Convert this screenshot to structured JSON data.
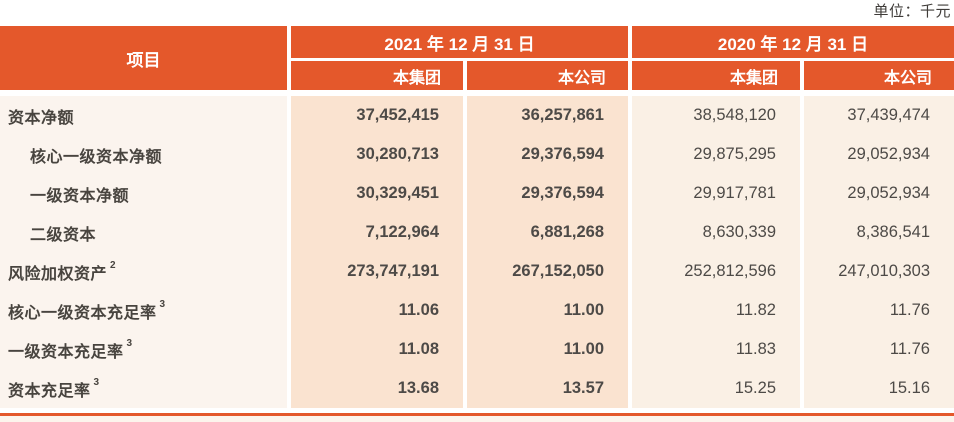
{
  "unit_label": "单位：千元",
  "colors": {
    "accent_orange": "#e4582b",
    "col_2021_bg": "#fae3d0",
    "col_2020_bg": "#faf0e5",
    "item_col_bg": "#fbf4ee",
    "text_dark": "#48443f"
  },
  "table": {
    "header": {
      "item": "项目",
      "period_2021": "2021 年 12 月 31 日",
      "period_2020": "2020 年 12 月 31 日",
      "subcols": [
        "本集团",
        "本公司",
        "本集团",
        "本公司"
      ]
    },
    "rows": [
      {
        "label": "资本净额",
        "sup": "",
        "values": [
          "37,452,415",
          "36,257,861",
          "38,548,120",
          "37,439,474"
        ]
      },
      {
        "label": "核心一级资本净额",
        "sup": "",
        "values": [
          "30,280,713",
          "29,376,594",
          "29,875,295",
          "29,052,934"
        ]
      },
      {
        "label": "一级资本净额",
        "sup": "",
        "values": [
          "30,329,451",
          "29,376,594",
          "29,917,781",
          "29,052,934"
        ]
      },
      {
        "label": "二级资本",
        "sup": "",
        "values": [
          "7,122,964",
          "6,881,268",
          "8,630,339",
          "8,386,541"
        ]
      },
      {
        "label": "风险加权资产",
        "sup": "2",
        "values": [
          "273,747,191",
          "267,152,050",
          "252,812,596",
          "247,010,303"
        ]
      },
      {
        "label": "核心一级资本充足率",
        "sup": "3",
        "values": [
          "11.06",
          "11.00",
          "11.82",
          "11.76"
        ]
      },
      {
        "label": "一级资本充足率",
        "sup": "3",
        "values": [
          "11.08",
          "11.00",
          "11.83",
          "11.76"
        ]
      },
      {
        "label": "资本充足率",
        "sup": "3",
        "values": [
          "13.68",
          "13.57",
          "15.25",
          "15.16"
        ]
      }
    ]
  }
}
